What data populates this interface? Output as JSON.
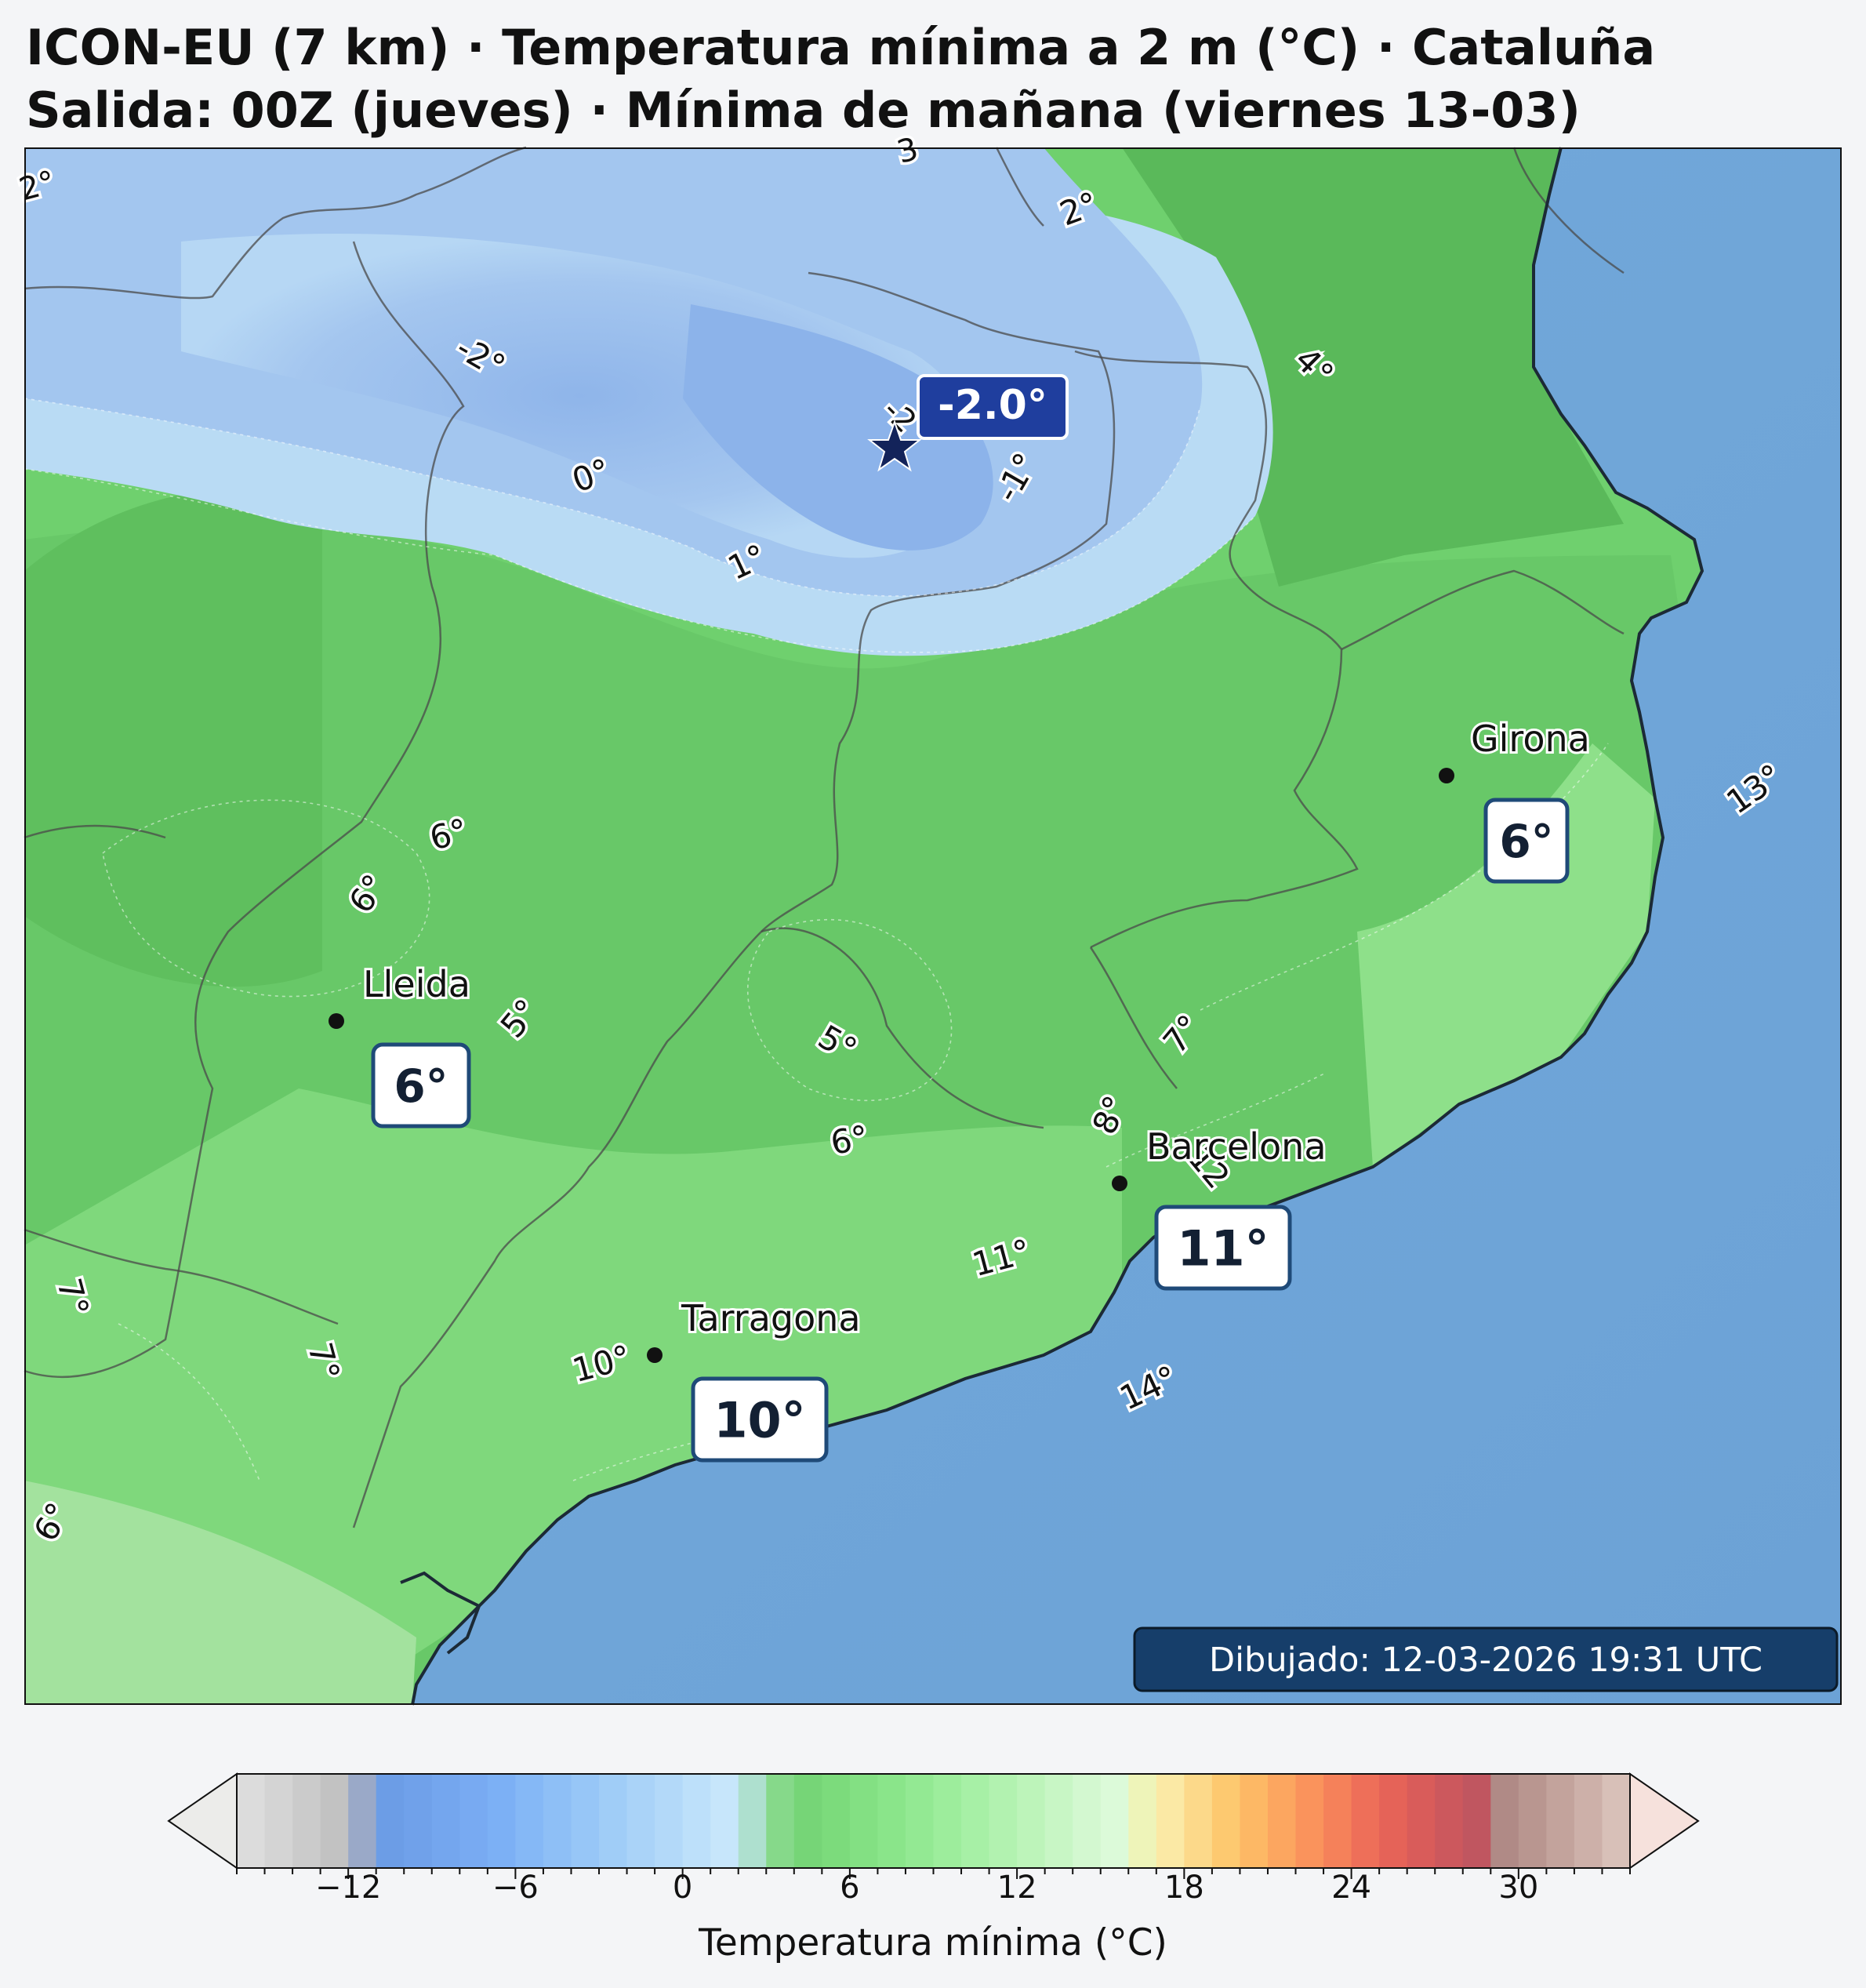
{
  "header": {
    "title_line1": "ICON-EU (7 km) · Temperatura mínima a 2 m (°C) · Cataluña",
    "title_line2": "Salida: 00Z (jueves) · Mínima de mañana (viernes 13-03)"
  },
  "map": {
    "variable": "Temperatura mínima a 2 m",
    "colors": {
      "sea": "#6fa7da",
      "land_warm": "#76d672",
      "land_mid": "#5fbf5f",
      "land_cold": "#a9c9ef",
      "land_coldest": "#86aee8",
      "coast": "#1c2a36",
      "border": "#4a4a4a"
    },
    "cities": [
      {
        "name": "Girona",
        "value": "6°"
      },
      {
        "name": "Lleida",
        "value": "6°"
      },
      {
        "name": "Barcelona",
        "value": "11°"
      },
      {
        "name": "Tarragona",
        "value": "10°"
      }
    ],
    "minimum": {
      "label": "-2.0°",
      "marker": "star-icon"
    },
    "contour_labels": [
      "2°",
      "3",
      "2°",
      "-2°",
      "4°",
      "-2",
      "0°",
      "-1°",
      "1°",
      "13°",
      "6°",
      "6°",
      "5°",
      "7°",
      "5°",
      "8°",
      "6°",
      "12",
      "11°",
      "7°",
      "7°",
      "10°",
      "14°",
      "6°"
    ],
    "timestamp": "Dibujado: 12-03-2026 19:31 UTC"
  },
  "colorbar": {
    "label": "Temperatura mínima (°C)",
    "range": [
      -16,
      34
    ],
    "step": 1,
    "extend": "both",
    "tick_values": [
      -12,
      -6,
      0,
      6,
      12,
      18,
      24,
      30
    ],
    "tick_labels": [
      "−12",
      "−6",
      "0",
      "6",
      "12",
      "18",
      "24",
      "30"
    ],
    "colors": [
      "#dcdcdc",
      "#d4d4d4",
      "#cbcbcb",
      "#c2c2c2",
      "#9aa9c8",
      "#6c9de6",
      "#70a1ea",
      "#74a6ee",
      "#78aaf2",
      "#7cb0f5",
      "#85b8f6",
      "#8ebff6",
      "#97c6f7",
      "#a0cdf7",
      "#aad3f8",
      "#b3d9f9",
      "#bde0fa",
      "#c7e6fb",
      "#aee0cf",
      "#86d98a",
      "#76d577",
      "#7cdb7c",
      "#83e083",
      "#8ae58a",
      "#93e993",
      "#9ded9c",
      "#a7f0a6",
      "#b2f2b0",
      "#bdf4ba",
      "#c8f6c5",
      "#d3f8d0",
      "#dcfad9",
      "#eef4b9",
      "#fbe9a5",
      "#fcd98a",
      "#fdc970",
      "#fdb865",
      "#fca660",
      "#fa935c",
      "#f5815a",
      "#ee6f59",
      "#e56358",
      "#d95c5a",
      "#cc585d",
      "#c05660",
      "#b08a86",
      "#b99690",
      "#c3a39c",
      "#cdb0a9",
      "#d8c0b8",
      "#e3cfc7",
      "#edddd6"
    ],
    "extend_colors": [
      "#ececea",
      "#f6e1dc"
    ]
  }
}
